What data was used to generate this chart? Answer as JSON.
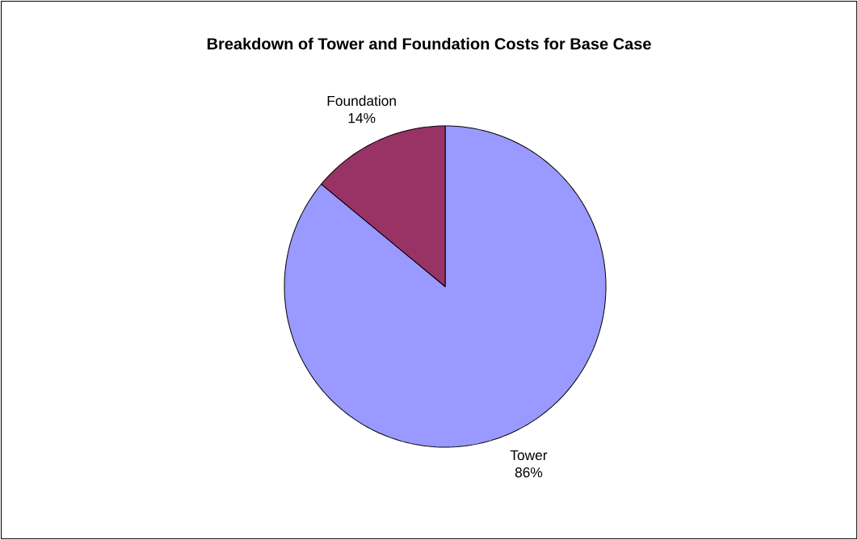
{
  "chart_data": {
    "type": "pie",
    "title": "Breakdown of Tower and Foundation Costs for Base Case",
    "categories": [
      "Tower",
      "Foundation"
    ],
    "values": [
      86,
      14
    ],
    "colors": [
      "#9999ff",
      "#993366"
    ],
    "value_labels": [
      "86%",
      "14%"
    ]
  }
}
